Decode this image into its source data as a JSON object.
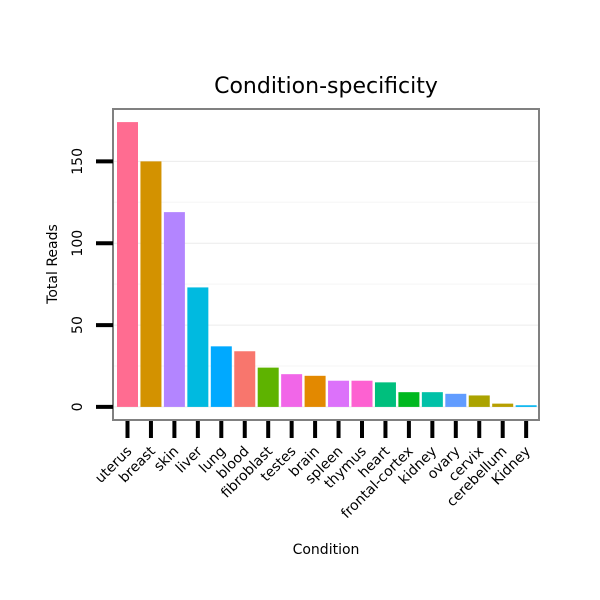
{
  "chart_data": {
    "type": "bar",
    "title": "Condition-specificity",
    "xlabel": "Condition",
    "ylabel": "Total Reads",
    "ylim": [
      -8,
      182
    ],
    "yticks": [
      0,
      50,
      100,
      150
    ],
    "ytick_labels": [
      "0",
      "50",
      "100",
      "150"
    ],
    "categories": [
      "uterus",
      "breast",
      "skin",
      "liver",
      "lung",
      "blood",
      "fibroblast",
      "testes",
      "brain",
      "spleen",
      "thymus",
      "heart",
      "frontal-cortex",
      "kidney",
      "ovary",
      "cervix",
      "cerebellum",
      "Kidney"
    ],
    "values": [
      174,
      150,
      119,
      73,
      37,
      34,
      24,
      20,
      19,
      16,
      16,
      15,
      9,
      9,
      8,
      7,
      2,
      1
    ],
    "colors": [
      "#FF6C91",
      "#D39200",
      "#B385FF",
      "#00BAE0",
      "#00A9FF",
      "#F8766D",
      "#5EB300",
      "#F166E8",
      "#E38900",
      "#DC71FA",
      "#FD61D1",
      "#00BF7D",
      "#00B81F",
      "#00C1A7",
      "#619CFF",
      "#ABA300",
      "#B79F00",
      "#00B4EF"
    ],
    "grid": true,
    "legend": "none"
  }
}
